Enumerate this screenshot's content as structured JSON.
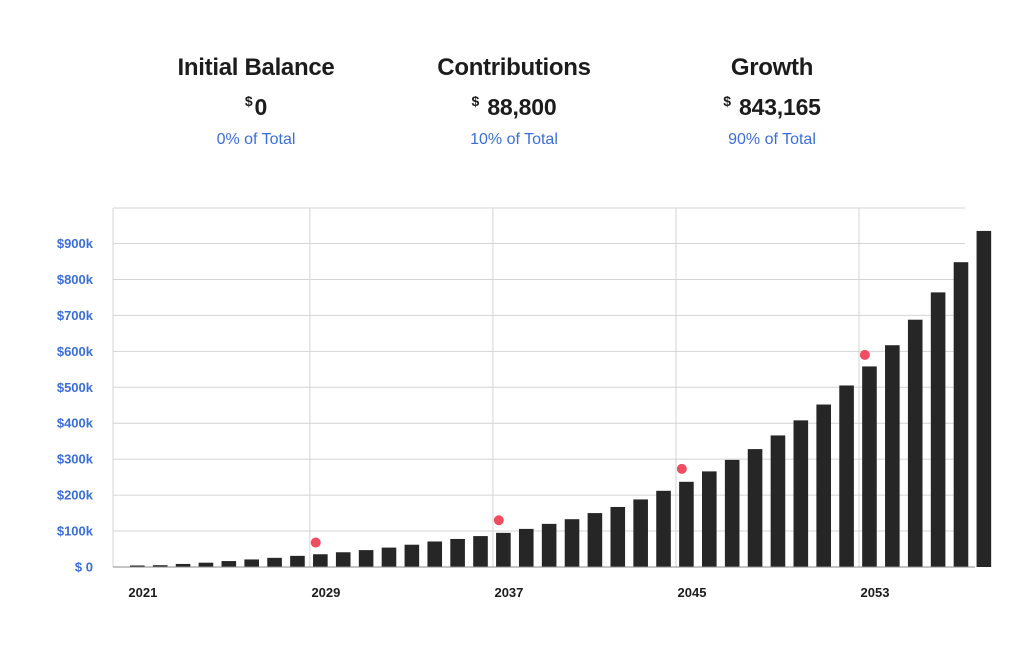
{
  "summary": {
    "initial": {
      "title": "Initial Balance",
      "currency": "$",
      "value": "0",
      "pct": "0% of Total"
    },
    "contributions": {
      "title": "Contributions",
      "currency": "$",
      "value": "88,800",
      "pct": "10% of Total"
    },
    "growth": {
      "title": "Growth",
      "currency": "$",
      "value": "843,165",
      "pct": "90% of Total"
    }
  },
  "colors": {
    "bar": "#262626",
    "marker": "#ef4e62",
    "axis_label": "#3b6fd8",
    "grid": "#d4d4d4"
  },
  "chart_data": {
    "type": "bar",
    "title": "",
    "xlabel": "",
    "ylabel": "",
    "categories": [
      2021,
      2022,
      2023,
      2024,
      2025,
      2026,
      2027,
      2028,
      2029,
      2030,
      2031,
      2032,
      2033,
      2034,
      2035,
      2036,
      2037,
      2038,
      2039,
      2040,
      2041,
      2042,
      2043,
      2044,
      2045,
      2046,
      2047,
      2048,
      2049,
      2050,
      2051,
      2052,
      2053,
      2054,
      2055,
      2056,
      2057,
      2058
    ],
    "values": [
      2000,
      5000,
      8500,
      12000,
      16500,
      21000,
      25500,
      31000,
      35500,
      41000,
      47000,
      54000,
      62000,
      71000,
      78000,
      86000,
      95000,
      106000,
      120000,
      133000,
      150000,
      167000,
      188000,
      212000,
      237000,
      266000,
      298000,
      328000,
      366000,
      408000,
      452000,
      505000,
      558000,
      617000,
      688000,
      764000,
      848000,
      935000
    ],
    "markers": [
      {
        "x": 2028.8,
        "y": 68000
      },
      {
        "x": 2036.8,
        "y": 130000
      },
      {
        "x": 2044.8,
        "y": 273000
      },
      {
        "x": 2052.8,
        "y": 590000
      }
    ],
    "ylim": [
      0,
      1000000
    ],
    "yticks": [
      0,
      100000,
      200000,
      300000,
      400000,
      500000,
      600000,
      700000,
      800000,
      900000
    ],
    "ytick_labels": [
      "$ 0",
      "$100k",
      "$200k",
      "$300k",
      "$400k",
      "$500k",
      "$600k",
      "$700k",
      "$800k",
      "$900k"
    ],
    "xticks": [
      2021,
      2029,
      2037,
      2045,
      2053
    ],
    "xtick_labels": [
      "2021",
      "2029",
      "2037",
      "2045",
      "2053"
    ],
    "grid": true,
    "legend": "none"
  }
}
